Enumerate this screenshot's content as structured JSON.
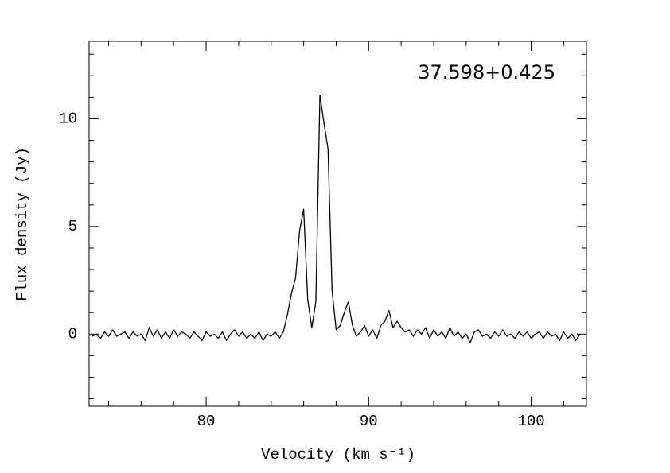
{
  "chart_data": {
    "type": "line",
    "title": "37.598+0.425",
    "x_label": "Velocity (km s⁻¹)",
    "y_label": "Flux density (Jy)",
    "color": "#000000",
    "xlim": [
      72.8,
      103.4
    ],
    "ylim": [
      -3.35,
      13.6
    ],
    "xticks": [
      80,
      90,
      100
    ],
    "xminorticks": [
      74,
      76,
      78,
      82,
      84,
      86,
      88,
      92,
      94,
      96,
      98,
      102
    ],
    "yticks": [
      0,
      5,
      10
    ],
    "yminorticks": [
      -3,
      -2,
      -1,
      1,
      2,
      3,
      4,
      6,
      7,
      8,
      9,
      11,
      12,
      13
    ],
    "x": [
      73,
      73.25,
      73.5,
      73.75,
      74,
      74.25,
      74.5,
      74.75,
      75,
      75.25,
      75.5,
      75.75,
      76,
      76.25,
      76.5,
      76.75,
      77,
      77.25,
      77.5,
      77.75,
      78,
      78.25,
      78.5,
      78.75,
      79,
      79.25,
      79.5,
      79.75,
      80,
      80.25,
      80.5,
      80.75,
      81,
      81.25,
      81.5,
      81.75,
      82,
      82.25,
      82.5,
      82.75,
      83,
      83.25,
      83.5,
      83.75,
      84,
      84.25,
      84.5,
      84.75,
      85,
      85.25,
      85.5,
      85.75,
      86,
      86.25,
      86.5,
      86.75,
      87,
      87.25,
      87.5,
      87.75,
      88,
      88.25,
      88.5,
      88.75,
      89,
      89.25,
      89.5,
      89.75,
      90,
      90.25,
      90.5,
      90.75,
      91,
      91.25,
      91.5,
      91.75,
      92,
      92.25,
      92.5,
      92.75,
      93,
      93.25,
      93.5,
      93.75,
      94,
      94.25,
      94.5,
      94.75,
      95,
      95.25,
      95.5,
      95.75,
      96,
      96.25,
      96.5,
      96.75,
      97,
      97.25,
      97.5,
      97.75,
      98,
      98.25,
      98.5,
      98.75,
      99,
      99.25,
      99.5,
      99.75,
      100,
      100.25,
      100.5,
      100.75,
      101,
      101.25,
      101.5,
      101.75,
      102,
      102.25,
      102.5,
      102.75,
      103
    ],
    "values": [
      -0.1,
      0.0,
      -0.2,
      0.1,
      -0.1,
      0.2,
      -0.1,
      0.0,
      0.1,
      -0.2,
      0.1,
      -0.1,
      0.0,
      -0.3,
      0.3,
      -0.1,
      0.2,
      -0.2,
      0.1,
      -0.2,
      0.2,
      -0.1,
      0.1,
      0.0,
      -0.2,
      0.1,
      -0.1,
      -0.3,
      0.1,
      -0.1,
      0.0,
      -0.2,
      0.1,
      -0.3,
      0.0,
      0.2,
      -0.1,
      0.1,
      -0.2,
      0.0,
      -0.2,
      0.1,
      -0.3,
      0.0,
      -0.1,
      0.1,
      -0.2,
      0.1,
      0.9,
      1.9,
      2.6,
      4.8,
      5.8,
      1.6,
      0.3,
      1.5,
      11.1,
      9.8,
      8.6,
      2.0,
      0.2,
      0.4,
      1.0,
      1.5,
      0.4,
      -0.1,
      0.1,
      0.4,
      -0.1,
      0.2,
      -0.2,
      0.4,
      0.6,
      1.1,
      0.3,
      0.6,
      0.3,
      0.1,
      0.2,
      -0.1,
      0.2,
      0.0,
      0.3,
      -0.2,
      0.2,
      -0.1,
      0.1,
      -0.2,
      0.3,
      -0.1,
      0.1,
      -0.2,
      0.0,
      -0.4,
      0.1,
      0.2,
      -0.1,
      0.0,
      -0.2,
      0.1,
      -0.1,
      0.2,
      -0.1,
      0.0,
      -0.2,
      0.1,
      -0.1,
      0.1,
      -0.2,
      0.0,
      0.1,
      -0.2,
      0.1,
      -0.1,
      0.0,
      -0.3,
      0.1,
      -0.2,
      0.0,
      -0.3,
      0.0
    ]
  }
}
